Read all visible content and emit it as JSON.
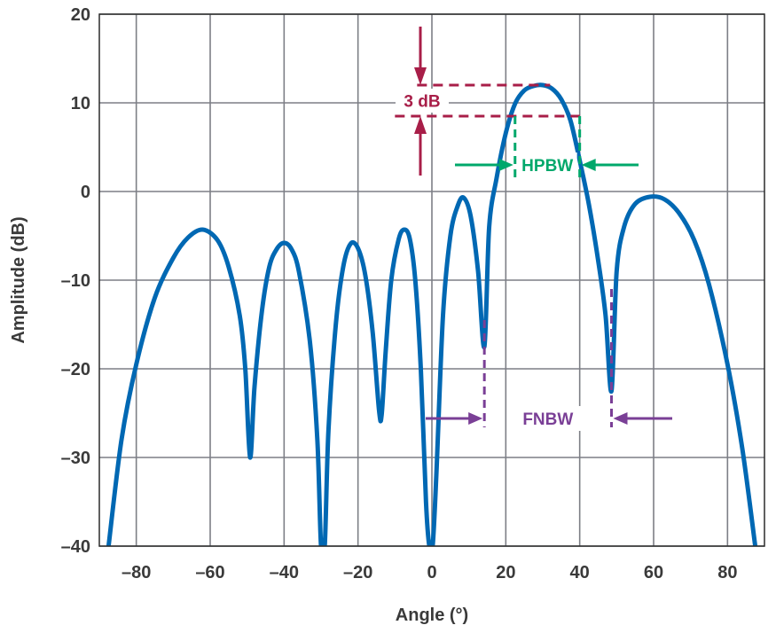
{
  "chart_data": {
    "type": "line",
    "xlabel": "Angle (°)",
    "ylabel": "Amplitude (dB)",
    "xlim": [
      -90,
      90
    ],
    "ylim": [
      -40,
      20
    ],
    "xticks": [
      -80,
      -60,
      -40,
      -20,
      0,
      20,
      40,
      60,
      80
    ],
    "xtick_labels": [
      "–80",
      "–60",
      "–40",
      "–20",
      "0",
      "20",
      "40",
      "60",
      "80"
    ],
    "yticks": [
      20,
      10,
      0,
      -10,
      -20,
      -30,
      -40
    ],
    "ytick_labels": [
      "20",
      "10",
      "0",
      "–10",
      "–20",
      "–30",
      "–40"
    ],
    "grid": true,
    "series": [
      {
        "color": "#0068b3",
        "x": [
          -87.5,
          -84,
          -80,
          -75,
          -70,
          -66,
          -62,
          -58,
          -55,
          -52,
          -50.5,
          -49.2,
          -48,
          -46,
          -44,
          -42,
          -40,
          -38,
          -36,
          -33,
          -31,
          -30,
          -29,
          -28,
          -26,
          -24,
          -22,
          -20,
          -18,
          -16,
          -14.3,
          -13.6,
          -12.5,
          -11,
          -9,
          -7.5,
          -6,
          -4.5,
          -3,
          -1.6,
          -0.7,
          0.2,
          1.2,
          3,
          5,
          7,
          8.6,
          10.5,
          12.5,
          14.2,
          15.5,
          17.5,
          20,
          22.5,
          25,
          27.5,
          30,
          32.5,
          35,
          37.5,
          40,
          42.5,
          45,
          47,
          48.6,
          50,
          52,
          55,
          59,
          63,
          67,
          71,
          75,
          80,
          84,
          87.5
        ],
        "y": [
          -40,
          -28,
          -19.5,
          -12,
          -7.5,
          -5.2,
          -4.3,
          -5.5,
          -8.5,
          -14,
          -20,
          -30,
          -22,
          -13.5,
          -8.5,
          -6.5,
          -5.8,
          -6.5,
          -9,
          -17,
          -28,
          -40,
          -40,
          -27,
          -15,
          -8.5,
          -5.9,
          -6.4,
          -9.5,
          -16,
          -24.7,
          -25.2,
          -18,
          -10,
          -5.4,
          -4.3,
          -5.3,
          -10,
          -20,
          -35,
          -40,
          -40,
          -32,
          -14,
          -5,
          -1.6,
          -0.7,
          -2.8,
          -9,
          -17.5,
          -4,
          1.5,
          6.6,
          9.9,
          11.4,
          11.9,
          12,
          11.6,
          10.4,
          8,
          3.5,
          -1.5,
          -7.8,
          -14,
          -22.5,
          -9,
          -4,
          -1.4,
          -0.6,
          -0.9,
          -2.5,
          -5.5,
          -10.5,
          -19.5,
          -29,
          -40
        ]
      }
    ],
    "annotations": [
      {
        "text": "3 dB",
        "color": "#a81e48",
        "x1": -4,
        "x2": 32,
        "y_top": 12,
        "y_bottom": 8.5,
        "hline_bottom_x": [
          -10,
          40
        ]
      },
      {
        "text": "HPBW",
        "color": "#00a86b",
        "x1": 22.5,
        "x2": 40,
        "y": 3
      },
      {
        "text": "FNBW",
        "color": "#7a3f96",
        "x1": 14.2,
        "x2": 48.6,
        "y": -25.6
      }
    ]
  }
}
